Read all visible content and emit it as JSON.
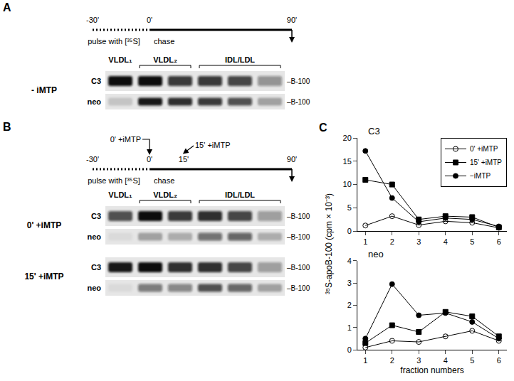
{
  "panels": [
    {
      "label": "A",
      "timeline": {
        "ticks": [
          "-30'",
          "0'",
          "90'"
        ],
        "pulse": "pulse with [³⁵S]",
        "chase": "chase"
      },
      "gel_header": [
        {
          "text": "VLDL₁",
          "lanes": [
            1
          ]
        },
        {
          "text": "VLDL₂",
          "lanes": [
            2,
            3
          ]
        },
        {
          "text": "IDL/LDL",
          "lanes": [
            4,
            5,
            6
          ]
        }
      ],
      "blots": [
        {
          "condition": "- iMTP",
          "rows": [
            {
              "name": "C3",
              "band_label": "–B-100",
              "intensity": [
                1,
                1,
                0.8,
                0.8,
                0.75,
                0.4
              ]
            },
            {
              "name": "neo",
              "band_label": "–B-100",
              "intensity": [
                0.15,
                0.95,
                0.85,
                0.8,
                0.7,
                0.3
              ]
            }
          ]
        }
      ]
    },
    {
      "label": "B",
      "timeline": {
        "ticks": [
          "-30'",
          "0'",
          "15'",
          "90'"
        ],
        "treatments": [
          "0' +iMTP",
          "15' +iMTP"
        ],
        "pulse": "pulse with [³⁵S]",
        "chase": "chase"
      },
      "gel_header": [
        {
          "text": "VLDL₁",
          "lanes": [
            1
          ]
        },
        {
          "text": "VLDL₂",
          "lanes": [
            2,
            3
          ]
        },
        {
          "text": "IDL/LDL",
          "lanes": [
            4,
            5,
            6
          ]
        }
      ],
      "blots": [
        {
          "condition": "0' +iMTP",
          "rows": [
            {
              "name": "C3",
              "band_label": "–B-100",
              "intensity": [
                0.7,
                1,
                0.8,
                0.85,
                0.75,
                0.35
              ]
            },
            {
              "name": "neo",
              "band_label": "–B-100",
              "intensity": [
                0.05,
                0.3,
                0.25,
                0.55,
                0.6,
                0.25
              ]
            }
          ]
        },
        {
          "condition": "15' +iMTP",
          "rows": [
            {
              "name": "C3",
              "band_label": "–B-100",
              "intensity": [
                0.95,
                1,
                0.85,
                0.85,
                0.75,
                0.35
              ]
            },
            {
              "name": "neo",
              "band_label": "–B-100",
              "intensity": [
                0.05,
                0.5,
                0.45,
                0.7,
                0.6,
                0.3
              ]
            }
          ]
        }
      ]
    }
  ],
  "chart_panel_label": "C",
  "chart_data": [
    {
      "type": "line",
      "title": "C3",
      "ylabel": "³⁵S-apoB-100 (cpm × 10⁻³)",
      "x": [
        1,
        2,
        3,
        4,
        5,
        6
      ],
      "xlim": [
        0.7,
        6.3
      ],
      "xticks": [
        1,
        2,
        3,
        4,
        5,
        6
      ],
      "ylim": [
        0,
        20
      ],
      "yticks": [
        0,
        5,
        10,
        15,
        20
      ],
      "legend": "upper right",
      "series": [
        {
          "name": "0' +iMTP",
          "color": "#000000",
          "marker": "circle-open",
          "values": [
            1.2,
            3.2,
            1.3,
            2.1,
            1.8,
            0.7
          ]
        },
        {
          "name": "15' +iMTP",
          "color": "#000000",
          "marker": "square",
          "values": [
            11,
            10,
            2.5,
            3.2,
            3,
            0.8
          ]
        },
        {
          "name": "−iMTP",
          "color": "#000000",
          "marker": "circle",
          "values": [
            17.2,
            7.1,
            2,
            2.8,
            2.5,
            1
          ]
        }
      ]
    },
    {
      "type": "line",
      "title": "neo",
      "xlabel": "fraction numbers",
      "x": [
        1,
        2,
        3,
        4,
        5,
        6
      ],
      "xlim": [
        0.7,
        6.3
      ],
      "xticks": [
        1,
        2,
        3,
        4,
        5,
        6
      ],
      "ylim": [
        0,
        4
      ],
      "yticks": [
        0,
        1,
        2,
        3,
        4
      ],
      "series": [
        {
          "name": "0' +iMTP",
          "color": "#000000",
          "marker": "circle-open",
          "values": [
            0.1,
            0.4,
            0.35,
            0.6,
            0.85,
            0.4
          ]
        },
        {
          "name": "15' +iMTP",
          "color": "#000000",
          "marker": "square",
          "values": [
            0.3,
            1.1,
            0.8,
            1.7,
            1.5,
            0.6
          ]
        },
        {
          "name": "−iMTP",
          "color": "#000000",
          "marker": "circle",
          "values": [
            0.5,
            2.95,
            1.55,
            1.65,
            1.25,
            0.5
          ]
        }
      ]
    }
  ]
}
